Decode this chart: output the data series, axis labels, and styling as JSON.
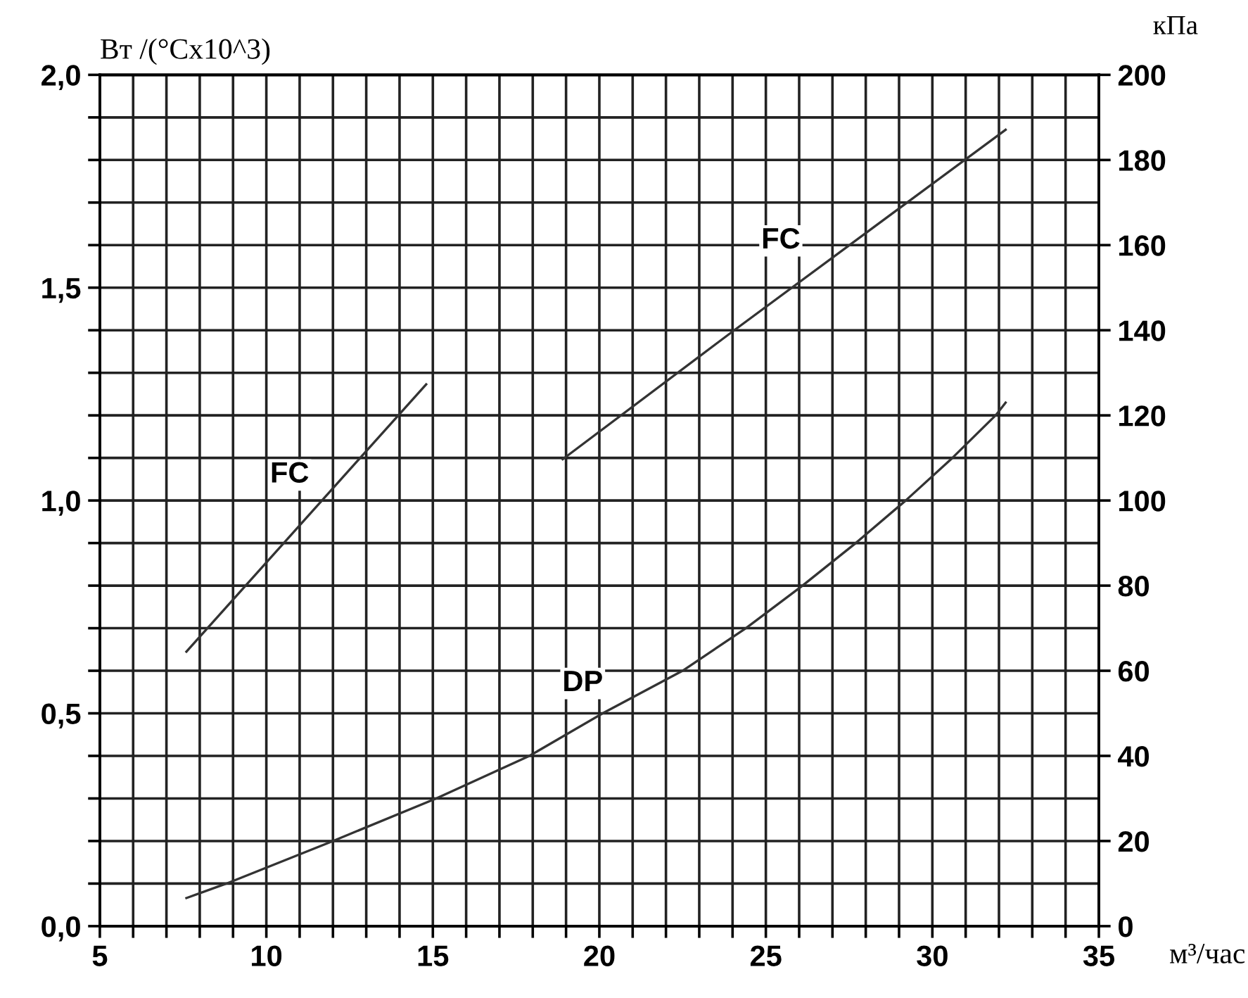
{
  "chart_data": {
    "type": "line",
    "ylabel": "Вт /(°Cx10^3)",
    "y2label": "кПа",
    "xlabel": "м³/час",
    "xlim": [
      5,
      35
    ],
    "xticks": [
      5,
      {
        "value": 6,
        "label": null
      },
      {
        "value": 7,
        "label": null
      },
      {
        "value": 8,
        "label": null
      },
      {
        "value": 9,
        "label": null
      },
      10,
      {
        "value": 11,
        "label": null
      },
      {
        "value": 12,
        "label": null
      },
      {
        "value": 13,
        "label": null
      },
      {
        "value": 14,
        "label": null
      },
      15,
      {
        "value": 16,
        "label": null
      },
      {
        "value": 17,
        "label": null
      },
      {
        "value": 18,
        "label": null
      },
      {
        "value": 19,
        "label": null
      },
      20,
      {
        "value": 21,
        "label": null
      },
      {
        "value": 22,
        "label": null
      },
      {
        "value": 23,
        "label": null
      },
      {
        "value": 24,
        "label": null
      },
      25,
      {
        "value": 26,
        "label": null
      },
      {
        "value": 27,
        "label": null
      },
      {
        "value": 28,
        "label": null
      },
      {
        "value": 29,
        "label": null
      },
      30,
      {
        "value": 31,
        "label": null
      },
      {
        "value": 32,
        "label": null
      },
      {
        "value": 33,
        "label": null
      },
      {
        "value": 34,
        "label": null
      },
      35
    ],
    "ylim": [
      0,
      2.0
    ],
    "yticks": [
      {
        "value": 0,
        "label": "0,0"
      },
      {
        "value": 0.1,
        "label": null
      },
      {
        "value": 0.2,
        "label": null
      },
      {
        "value": 0.3,
        "label": null
      },
      {
        "value": 0.4,
        "label": null
      },
      {
        "value": 0.5,
        "label": "0,5"
      },
      {
        "value": 0.6,
        "label": null
      },
      {
        "value": 0.7,
        "label": null
      },
      {
        "value": 0.8,
        "label": null
      },
      {
        "value": 0.9,
        "label": null
      },
      {
        "value": 1.0,
        "label": "1,0"
      },
      {
        "value": 1.1,
        "label": null
      },
      {
        "value": 1.2,
        "label": null
      },
      {
        "value": 1.3,
        "label": null
      },
      {
        "value": 1.4,
        "label": null
      },
      {
        "value": 1.5,
        "label": "1,5"
      },
      {
        "value": 1.6,
        "label": null
      },
      {
        "value": 1.7,
        "label": null
      },
      {
        "value": 1.8,
        "label": null
      },
      {
        "value": 1.9,
        "label": null
      },
      {
        "value": 2.0,
        "label": "2,0"
      }
    ],
    "y2lim": [
      0,
      200
    ],
    "y2ticks": [
      0,
      20,
      40,
      60,
      80,
      100,
      120,
      140,
      160,
      180,
      200
    ],
    "grid": true,
    "marker": "none",
    "line_style": "solid",
    "series": [
      {
        "color": "#333333",
        "x": [
          7.6,
          14.8
        ],
        "values": [
          0.645,
          1.273
        ]
      },
      {
        "color": "#333333",
        "x": [
          18.9,
          24.05,
          32.2
        ],
        "values": [
          1.097,
          1.4,
          1.871
        ]
      },
      {
        "color": "#333333",
        "axis": "y2",
        "x": [
          7.6,
          8.8,
          12.0,
          15.1,
          17.9,
          20.1,
          22.5,
          24.4,
          26.1,
          27.7,
          29.2,
          30.6,
          31.9,
          32.2
        ],
        "values": [
          6.6,
          10,
          20,
          30,
          40,
          50,
          60,
          70,
          80,
          90,
          100,
          110,
          120,
          123
        ]
      }
    ],
    "annotations": [
      {
        "text": "FC",
        "x": 10.7,
        "y": 1.06
      },
      {
        "text": "FC",
        "x": 25.45,
        "y": 1.61
      },
      {
        "text": "DP",
        "x": 19.5,
        "y": 0.57
      }
    ]
  }
}
